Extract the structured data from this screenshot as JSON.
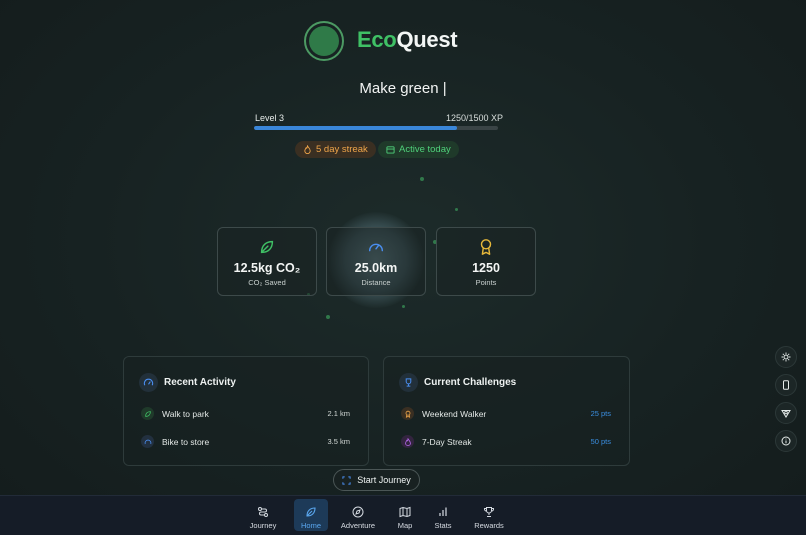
{
  "brand": {
    "eco": "Eco",
    "quest": "Quest"
  },
  "tagline": "Make green |",
  "progress": {
    "level_label": "Level 3",
    "xp_label": "1250/1500 XP",
    "fraction": 0.833,
    "color": "#3a86d9"
  },
  "badges": {
    "streak": "5 day streak",
    "active": "Active today"
  },
  "stats": [
    {
      "value": "12.5kg CO₂",
      "label": "CO₂ Saved",
      "icon": "leaf-icon"
    },
    {
      "value": "25.0km",
      "label": "Distance",
      "icon": "gauge-icon"
    },
    {
      "value": "1250",
      "label": "Points",
      "icon": "award-icon"
    }
  ],
  "recent_activity": {
    "title": "Recent Activity",
    "items": [
      {
        "label": "Walk to park",
        "value": "2.1 km",
        "icon": "leaf-icon"
      },
      {
        "label": "Bike to store",
        "value": "3.5 km",
        "icon": "gauge-icon"
      }
    ]
  },
  "challenges": {
    "title": "Current Challenges",
    "items": [
      {
        "label": "Weekend Walker",
        "value": "25 pts",
        "icon": "medal-icon"
      },
      {
        "label": "7-Day Streak",
        "value": "50 pts",
        "icon": "flame-icon"
      }
    ]
  },
  "start_button": "Start Journey",
  "nav": [
    {
      "label": "Journey",
      "icon": "route-icon"
    },
    {
      "label": "Home",
      "icon": "leaf-icon",
      "selected": true
    },
    {
      "label": "Adventure",
      "icon": "compass-icon"
    },
    {
      "label": "Map",
      "icon": "map-icon"
    },
    {
      "label": "Stats",
      "icon": "bar-chart-icon"
    },
    {
      "label": "Rewards",
      "icon": "trophy-icon"
    }
  ],
  "side_buttons": [
    "sun-icon",
    "phone-icon",
    "pokeball-icon",
    "info-icon"
  ]
}
